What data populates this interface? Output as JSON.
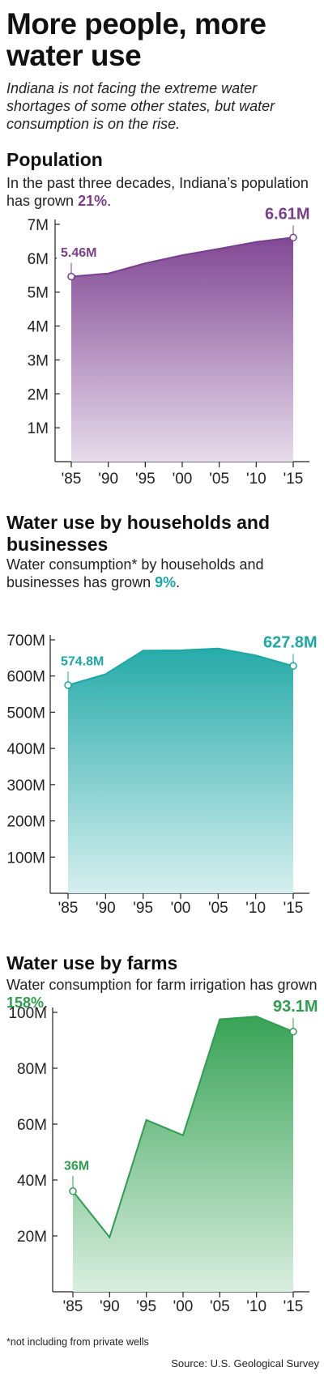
{
  "title": "More people, more water use",
  "intro": "Indiana is not facing the extreme water shortages of some other states, but water consumption is on the rise.",
  "colors": {
    "population": "#7a3e8e",
    "households": "#1ba7a4",
    "farms": "#2e9e4e"
  },
  "sections": {
    "population": {
      "heading": "Population",
      "desc_prefix": "In the past three decades, Indiana’s population has grown ",
      "desc_pct": "21%",
      "desc_suffix": "."
    },
    "households": {
      "heading": "Water use by households and businesses",
      "desc_prefix": "Water consumption* by households and businesses has grown ",
      "desc_pct": "9%",
      "desc_suffix": "."
    },
    "farms": {
      "heading": "Water use by farms",
      "desc_prefix": "Water consumption for farm irrigation has grown ",
      "desc_pct": "158%",
      "desc_suffix": "."
    }
  },
  "chart_data": [
    {
      "type": "area",
      "x": [
        "'85",
        "'90",
        "'95",
        "'00",
        "'05",
        "'10",
        "'15"
      ],
      "series": [
        {
          "values": [
            5.46,
            5.55,
            5.85,
            6.09,
            6.28,
            6.48,
            6.61
          ]
        }
      ],
      "ylim": [
        0,
        7
      ],
      "yticks": [
        1,
        2,
        3,
        4,
        5,
        6,
        7
      ],
      "ytick_labels": [
        "1M",
        "2M",
        "3M",
        "4M",
        "5M",
        "6M",
        "7M"
      ],
      "annotations": [
        {
          "index": 0,
          "text": "5.46M"
        },
        {
          "index": 6,
          "text": "6.61M"
        }
      ],
      "grid": false
    },
    {
      "type": "area",
      "x": [
        "'85",
        "'90",
        "'95",
        "'00",
        "'05",
        "'10",
        "'15"
      ],
      "series": [
        {
          "values": [
            574.8,
            605,
            670,
            671,
            676,
            657,
            627.8
          ]
        }
      ],
      "ylim": [
        0,
        700
      ],
      "yticks": [
        100,
        200,
        300,
        400,
        500,
        600,
        700
      ],
      "ytick_labels": [
        "100M",
        "200M",
        "300M",
        "400M",
        "500M",
        "600M",
        "700M"
      ],
      "annotations": [
        {
          "index": 0,
          "text": "574.8M"
        },
        {
          "index": 6,
          "text": "627.8M"
        }
      ],
      "grid": false
    },
    {
      "type": "area",
      "x": [
        "'85",
        "'90",
        "'95",
        "'00",
        "'05",
        "'10",
        "'15"
      ],
      "series": [
        {
          "values": [
            36,
            19.5,
            61.5,
            56,
            97.5,
            98.5,
            93.1
          ]
        }
      ],
      "ylim": [
        0,
        100
      ],
      "yticks": [
        20,
        40,
        60,
        80,
        100
      ],
      "ytick_labels": [
        "20M",
        "40M",
        "60M",
        "80M",
        "100M"
      ],
      "annotations": [
        {
          "index": 0,
          "text": "36M"
        },
        {
          "index": 6,
          "text": "93.1M"
        }
      ],
      "grid": false
    }
  ],
  "footnote": "*not including from private wells",
  "source": "Source: U.S. Geological Survey"
}
